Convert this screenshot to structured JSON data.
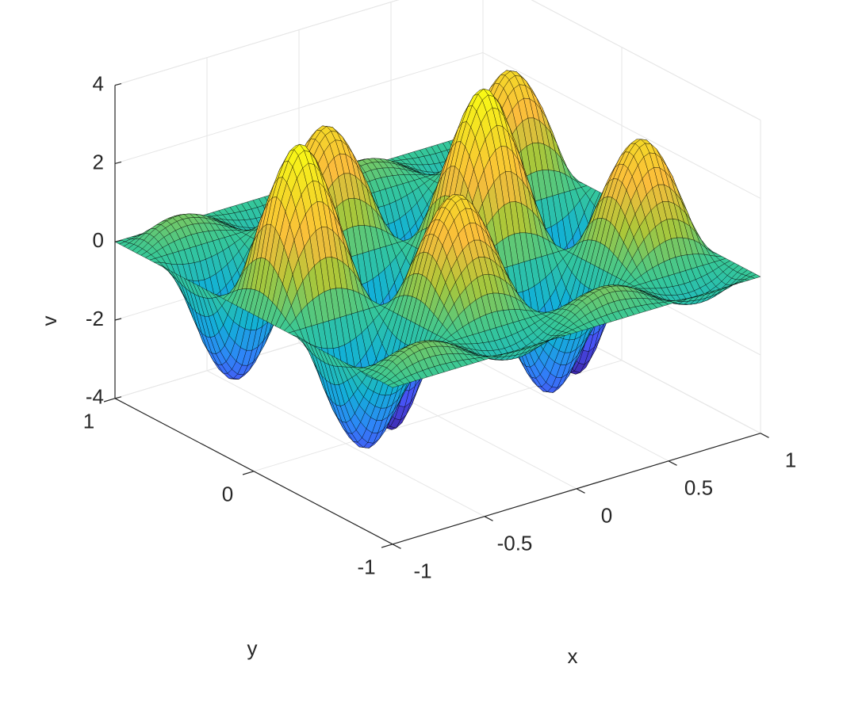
{
  "chart_data": {
    "type": "surface",
    "xlabel": "x",
    "ylabel": "y",
    "zlabel": "v",
    "x": [
      -1,
      -0.875,
      -0.75,
      -0.625,
      -0.5,
      -0.375,
      -0.25,
      -0.125,
      0,
      0.125,
      0.25,
      0.375,
      0.5,
      0.625,
      0.75,
      0.875,
      1
    ],
    "y": [
      -1,
      -0.875,
      -0.75,
      -0.625,
      -0.5,
      -0.375,
      -0.25,
      -0.125,
      0,
      0.125,
      0.25,
      0.375,
      0.5,
      0.625,
      0.75,
      0.875,
      1
    ],
    "z": [
      [
        0,
        0,
        0,
        0,
        0,
        0,
        0,
        0,
        0,
        0,
        0,
        0,
        0,
        0,
        0,
        0,
        0
      ],
      [
        0,
        0.39,
        0.55,
        0.39,
        0,
        -0.39,
        -0.55,
        -0.39,
        0,
        0.39,
        0.55,
        0.39,
        0,
        -0.39,
        -0.55,
        -0.39,
        0
      ],
      [
        0,
        0,
        0,
        0,
        0,
        0,
        0,
        0,
        0,
        0,
        0,
        0,
        0,
        0,
        0,
        0,
        0
      ],
      [
        0,
        -1.11,
        -1.57,
        -1.11,
        0,
        1.11,
        1.57,
        1.11,
        0,
        -1.11,
        -1.57,
        -1.11,
        0,
        1.11,
        1.57,
        1.11,
        0
      ],
      [
        0,
        -2,
        -2.83,
        -2,
        0,
        2,
        2.83,
        2,
        0,
        -2,
        -2.83,
        -2,
        0,
        2,
        2.83,
        2,
        0
      ],
      [
        0,
        -1.66,
        -2.35,
        -1.66,
        0,
        1.66,
        2.35,
        1.66,
        0,
        -1.66,
        -2.35,
        -1.66,
        0,
        1.66,
        2.35,
        1.66,
        0
      ],
      [
        0,
        0,
        0,
        0,
        0,
        0,
        0,
        0,
        0,
        0,
        0,
        0,
        0,
        0,
        0,
        0,
        0
      ],
      [
        0,
        1.96,
        2.77,
        1.96,
        0,
        -1.96,
        -2.77,
        -1.96,
        0,
        1.96,
        2.77,
        1.96,
        0,
        -1.96,
        -2.77,
        -1.96,
        0
      ],
      [
        0,
        2.83,
        4,
        2.83,
        0,
        -2.83,
        -4,
        -2.83,
        0,
        2.83,
        4,
        2.83,
        0,
        -2.83,
        -4,
        -2.83,
        0
      ],
      [
        0,
        1.96,
        2.77,
        1.96,
        0,
        -1.96,
        -2.77,
        -1.96,
        0,
        1.96,
        2.77,
        1.96,
        0,
        -1.96,
        -2.77,
        -1.96,
        0
      ],
      [
        0,
        0,
        0,
        0,
        0,
        0,
        0,
        0,
        0,
        0,
        0,
        0,
        0,
        0,
        0,
        0,
        0
      ],
      [
        0,
        -1.66,
        -2.35,
        -1.66,
        0,
        1.66,
        2.35,
        1.66,
        0,
        -1.66,
        -2.35,
        -1.66,
        0,
        1.66,
        2.35,
        1.66,
        0
      ],
      [
        0,
        -2,
        -2.83,
        -2,
        0,
        2,
        2.83,
        2,
        0,
        -2,
        -2.83,
        -2,
        0,
        2,
        2.83,
        2,
        0
      ],
      [
        0,
        -1.11,
        -1.57,
        -1.11,
        0,
        1.11,
        1.57,
        1.11,
        0,
        -1.11,
        -1.57,
        -1.11,
        0,
        1.11,
        1.57,
        1.11,
        0
      ],
      [
        0,
        0,
        0,
        0,
        0,
        0,
        0,
        0,
        0,
        0,
        0,
        0,
        0,
        0,
        0,
        0,
        0
      ],
      [
        0,
        0.39,
        0.55,
        0.39,
        0,
        -0.39,
        -0.55,
        -0.39,
        0,
        0.39,
        0.55,
        0.39,
        0,
        -0.39,
        -0.55,
        -0.39,
        0
      ],
      [
        0,
        0,
        0,
        0,
        0,
        0,
        0,
        0,
        0,
        0,
        0,
        0,
        0,
        0,
        0,
        0,
        0
      ]
    ],
    "xlim": [
      -1,
      1
    ],
    "xticks": [
      -1,
      -0.5,
      0,
      0.5,
      1
    ],
    "ylim": [
      -1,
      1
    ],
    "yticks": [
      -1,
      0,
      1
    ],
    "zlim": [
      -4,
      4
    ],
    "zticks": [
      -4,
      -2,
      0,
      2,
      4
    ],
    "grid": true,
    "edge_color": "#000000",
    "colormap": [
      "#3e26a8",
      "#4852f4",
      "#2d87f7",
      "#12b1d6",
      "#37c897",
      "#abc739",
      "#fbbc3c",
      "#f4dc25",
      "#f9fb15"
    ]
  }
}
